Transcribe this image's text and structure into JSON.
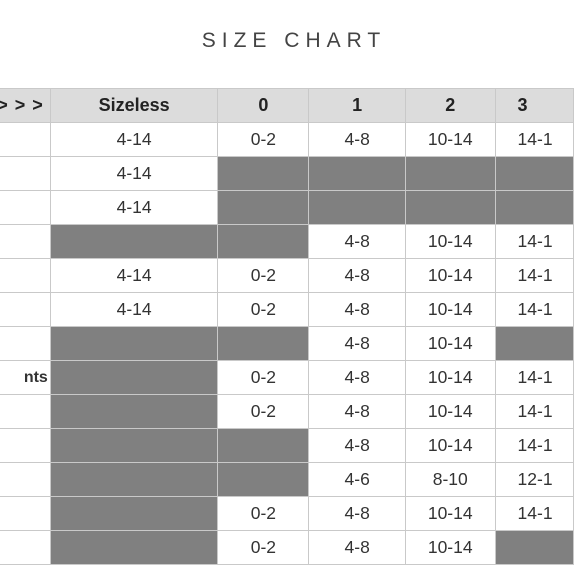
{
  "title": "SIZE CHART",
  "table": {
    "header": [
      "> > >",
      "Sizeless",
      "0",
      "1",
      "2",
      "3"
    ],
    "rows": [
      {
        "label": "",
        "cells": [
          "4-14",
          "0-2",
          "4-8",
          "10-14",
          "14-1"
        ]
      },
      {
        "label": "",
        "cells": [
          "4-14",
          null,
          null,
          null,
          null
        ]
      },
      {
        "label": "",
        "cells": [
          "4-14",
          null,
          null,
          null,
          null
        ]
      },
      {
        "label": "",
        "cells": [
          null,
          null,
          "4-8",
          "10-14",
          "14-1"
        ]
      },
      {
        "label": "",
        "cells": [
          "4-14",
          "0-2",
          "4-8",
          "10-14",
          "14-1"
        ]
      },
      {
        "label": "",
        "cells": [
          "4-14",
          "0-2",
          "4-8",
          "10-14",
          "14-1"
        ]
      },
      {
        "label": "",
        "cells": [
          null,
          null,
          "4-8",
          "10-14",
          null
        ]
      },
      {
        "label": "nts",
        "cells": [
          null,
          "0-2",
          "4-8",
          "10-14",
          "14-1"
        ]
      },
      {
        "label": "",
        "cells": [
          null,
          "0-2",
          "4-8",
          "10-14",
          "14-1"
        ]
      },
      {
        "label": "",
        "cells": [
          null,
          null,
          "4-8",
          "10-14",
          "14-1"
        ]
      },
      {
        "label": "",
        "cells": [
          null,
          null,
          "4-6",
          "8-10",
          "12-1"
        ]
      },
      {
        "label": "",
        "cells": [
          null,
          "0-2",
          "4-8",
          "10-14",
          "14-1"
        ]
      },
      {
        "label": "",
        "cells": [
          null,
          "0-2",
          "4-8",
          "10-14",
          null
        ]
      }
    ]
  },
  "colors": {
    "header_bg": "#dcdcdc",
    "unavailable_cell": "#808080",
    "border": "#c9c9c9",
    "text": "#333333"
  }
}
